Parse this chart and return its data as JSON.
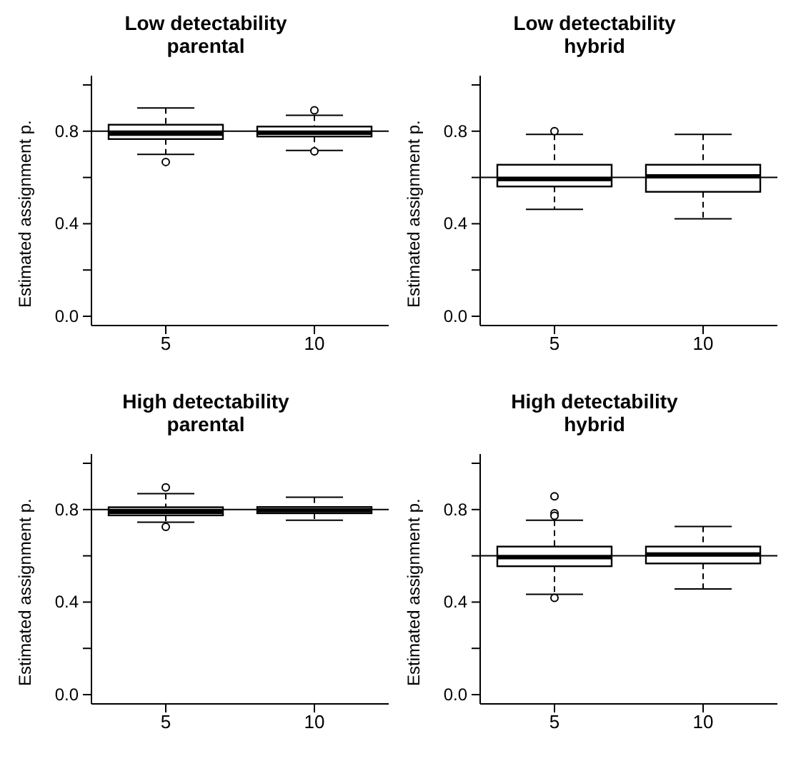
{
  "chart_data": [
    {
      "type": "box",
      "title": "Low detectability parental",
      "ylabel": "Estimated assignment p.",
      "categories": [
        "5",
        "10"
      ],
      "boxes": [
        {
          "low": 0.7,
          "q1": 0.766,
          "median": 0.789,
          "q3": 0.828,
          "high": 0.9,
          "outliers": [
            0.667
          ]
        },
        {
          "low": 0.717,
          "q1": 0.777,
          "median": 0.793,
          "q3": 0.82,
          "high": 0.869,
          "outliers": [
            0.89,
            0.713
          ]
        }
      ],
      "ylim": [
        -0.04,
        1.04
      ],
      "yticks": [
        {
          "value": 0,
          "label": "0.0"
        },
        {
          "value": 0.2,
          "label": null
        },
        {
          "value": 0.4,
          "label": "0.4"
        },
        {
          "value": 0.6,
          "label": null
        },
        {
          "value": 0.8,
          "label": "0.8"
        },
        {
          "value": 1.0,
          "label": null
        }
      ],
      "ref_lines": [
        {
          "axis": "y",
          "value": 0.8
        }
      ]
    },
    {
      "type": "box",
      "title": "Low detectability hybrid",
      "ylabel": "Estimated assignment p.",
      "categories": [
        "5",
        "10"
      ],
      "boxes": [
        {
          "low": 0.462,
          "q1": 0.561,
          "median": 0.593,
          "q3": 0.655,
          "high": 0.786,
          "outliers": [
            0.8
          ]
        },
        {
          "low": 0.421,
          "q1": 0.538,
          "median": 0.605,
          "q3": 0.655,
          "high": 0.786
        }
      ],
      "ylim": [
        -0.04,
        1.04
      ],
      "yticks": [
        {
          "value": 0,
          "label": "0.0"
        },
        {
          "value": 0.2,
          "label": null
        },
        {
          "value": 0.4,
          "label": "0.4"
        },
        {
          "value": 0.6,
          "label": null
        },
        {
          "value": 0.8,
          "label": "0.8"
        },
        {
          "value": 1.0,
          "label": null
        }
      ],
      "ref_lines": [
        {
          "axis": "y",
          "value": 0.6
        }
      ]
    },
    {
      "type": "box",
      "title": "High detectability parental",
      "ylabel": "Estimated assignment p.",
      "categories": [
        "5",
        "10"
      ],
      "boxes": [
        {
          "low": 0.745,
          "q1": 0.775,
          "median": 0.79,
          "q3": 0.81,
          "high": 0.869,
          "outliers": [
            0.896,
            0.725
          ]
        },
        {
          "low": 0.754,
          "q1": 0.784,
          "median": 0.797,
          "q3": 0.811,
          "high": 0.853
        }
      ],
      "ylim": [
        -0.04,
        1.04
      ],
      "yticks": [
        {
          "value": 0,
          "label": "0.0"
        },
        {
          "value": 0.2,
          "label": null
        },
        {
          "value": 0.4,
          "label": "0.4"
        },
        {
          "value": 0.6,
          "label": null
        },
        {
          "value": 0.8,
          "label": "0.8"
        },
        {
          "value": 1.0,
          "label": null
        }
      ],
      "ref_lines": [
        {
          "axis": "y",
          "value": 0.8
        }
      ]
    },
    {
      "type": "box",
      "title": "High detectability hybrid",
      "ylabel": "Estimated assignment p.",
      "categories": [
        "5",
        "10"
      ],
      "boxes": [
        {
          "low": 0.434,
          "q1": 0.555,
          "median": 0.594,
          "q3": 0.64,
          "high": 0.754,
          "outliers": [
            0.857,
            0.784,
            0.773,
            0.418
          ]
        },
        {
          "low": 0.457,
          "q1": 0.567,
          "median": 0.606,
          "q3": 0.64,
          "high": 0.727
        }
      ],
      "ylim": [
        -0.04,
        1.04
      ],
      "yticks": [
        {
          "value": 0,
          "label": "0.0"
        },
        {
          "value": 0.2,
          "label": null
        },
        {
          "value": 0.4,
          "label": "0.4"
        },
        {
          "value": 0.6,
          "label": null
        },
        {
          "value": 0.8,
          "label": "0.8"
        },
        {
          "value": 1.0,
          "label": null
        }
      ],
      "ref_lines": [
        {
          "axis": "y",
          "value": 0.6
        }
      ]
    }
  ]
}
